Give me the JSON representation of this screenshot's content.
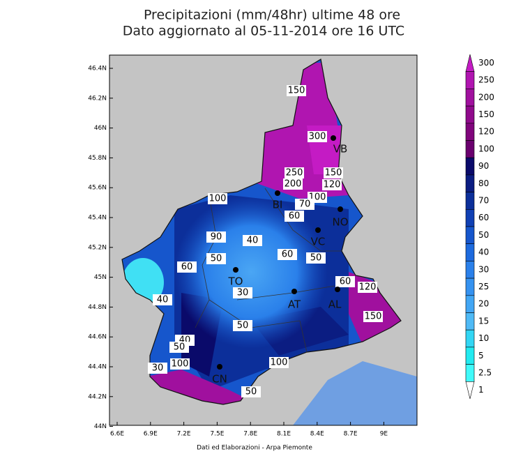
{
  "title": [
    "Precipitazioni (mm/48hr) ultime 48 ore",
    "Dato aggiornato al 05-11-2014 ore 16 UTC"
  ],
  "lat_labels": [
    "46.4N",
    "46.2N",
    "46N",
    "45.8N",
    "45.6N",
    "45.4N",
    "45.2N",
    "45N",
    "44.8N",
    "44.6N",
    "44.4N",
    "44.2N",
    "44N"
  ],
  "lon_labels": [
    "6.6E",
    "6.9E",
    "7.2E",
    "7.5E",
    "7.8E",
    "8.1E",
    "8.4E",
    "8.7E",
    "9E"
  ],
  "colorbar": {
    "labels": [
      "300",
      "250",
      "200",
      "150",
      "120",
      "100",
      "90",
      "80",
      "70",
      "60",
      "50",
      "40",
      "30",
      "25",
      "20",
      "15",
      "10",
      "5",
      "2.5",
      "1"
    ],
    "colors": [
      "#c41bc4",
      "#b015b0",
      "#a0109e",
      "#900a8c",
      "#80057c",
      "#6a006e",
      "#0a0a6a",
      "#0b1d82",
      "#0c2f9a",
      "#1040b4",
      "#1656cc",
      "#1d6ade",
      "#2a80ea",
      "#3592f0",
      "#42a6f4",
      "#4fbaf6",
      "#32d6f4",
      "#22eaf0",
      "#40fafa",
      "#ffffff"
    ]
  },
  "contour_labels": [
    "150",
    "300",
    "250",
    "200",
    "150",
    "120",
    "100",
    "100",
    "70",
    "60",
    "90",
    "40",
    "50",
    "60",
    "50",
    "60",
    "30",
    "60",
    "120",
    "150",
    "50",
    "40",
    "50",
    "100",
    "30",
    "100",
    "50",
    "40"
  ],
  "cities": [
    "TO",
    "AT",
    "AL",
    "VC",
    "CN",
    "VB",
    "NO",
    "BI"
  ],
  "footer": "Dati ed Elaborazioni - Arpa Piemonte"
}
